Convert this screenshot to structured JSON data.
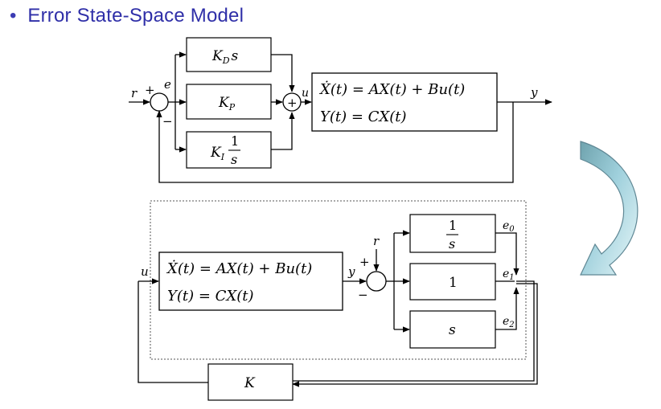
{
  "slide": {
    "bullet": "•",
    "title": "Error State-Space Model"
  },
  "colors": {
    "title": "#2f2fa8",
    "arrow_fill_light": "#dff2f6",
    "arrow_fill_dark": "#5f9aa7",
    "arrow_stroke": "#5f8794"
  },
  "top_diagram": {
    "signal_r": "r",
    "plus_sign": "+",
    "minus_sign": "−",
    "signal_e": "e",
    "signal_u": "u",
    "signal_y": "y",
    "sum_plus": "+",
    "block_kd": {
      "main": "K",
      "sub": "D",
      "tail": "s"
    },
    "block_kp": {
      "main": "K",
      "sub": "P"
    },
    "block_ki": {
      "main": "K",
      "sub": "I",
      "num": "1",
      "den": "s"
    },
    "plant_line1": "Ẋ(t) = AX(t) + Bu(t)",
    "plant_line2": "Y(t) = CX(t)"
  },
  "bottom_diagram": {
    "signal_u": "u",
    "signal_y": "y",
    "signal_r": "r",
    "plus_sign": "+",
    "minus_sign": "−",
    "plant_line1": "Ẋ(t) = AX(t) + Bu(t)",
    "plant_line2": "Y(t) = CX(t)",
    "block_int": {
      "num": "1",
      "den": "s"
    },
    "block_one": "1",
    "block_s": "s",
    "e0": {
      "main": "e",
      "sub": "0"
    },
    "e1": {
      "main": "e",
      "sub": "1"
    },
    "e2": {
      "main": "e",
      "sub": "2"
    },
    "gain_k": "K"
  }
}
